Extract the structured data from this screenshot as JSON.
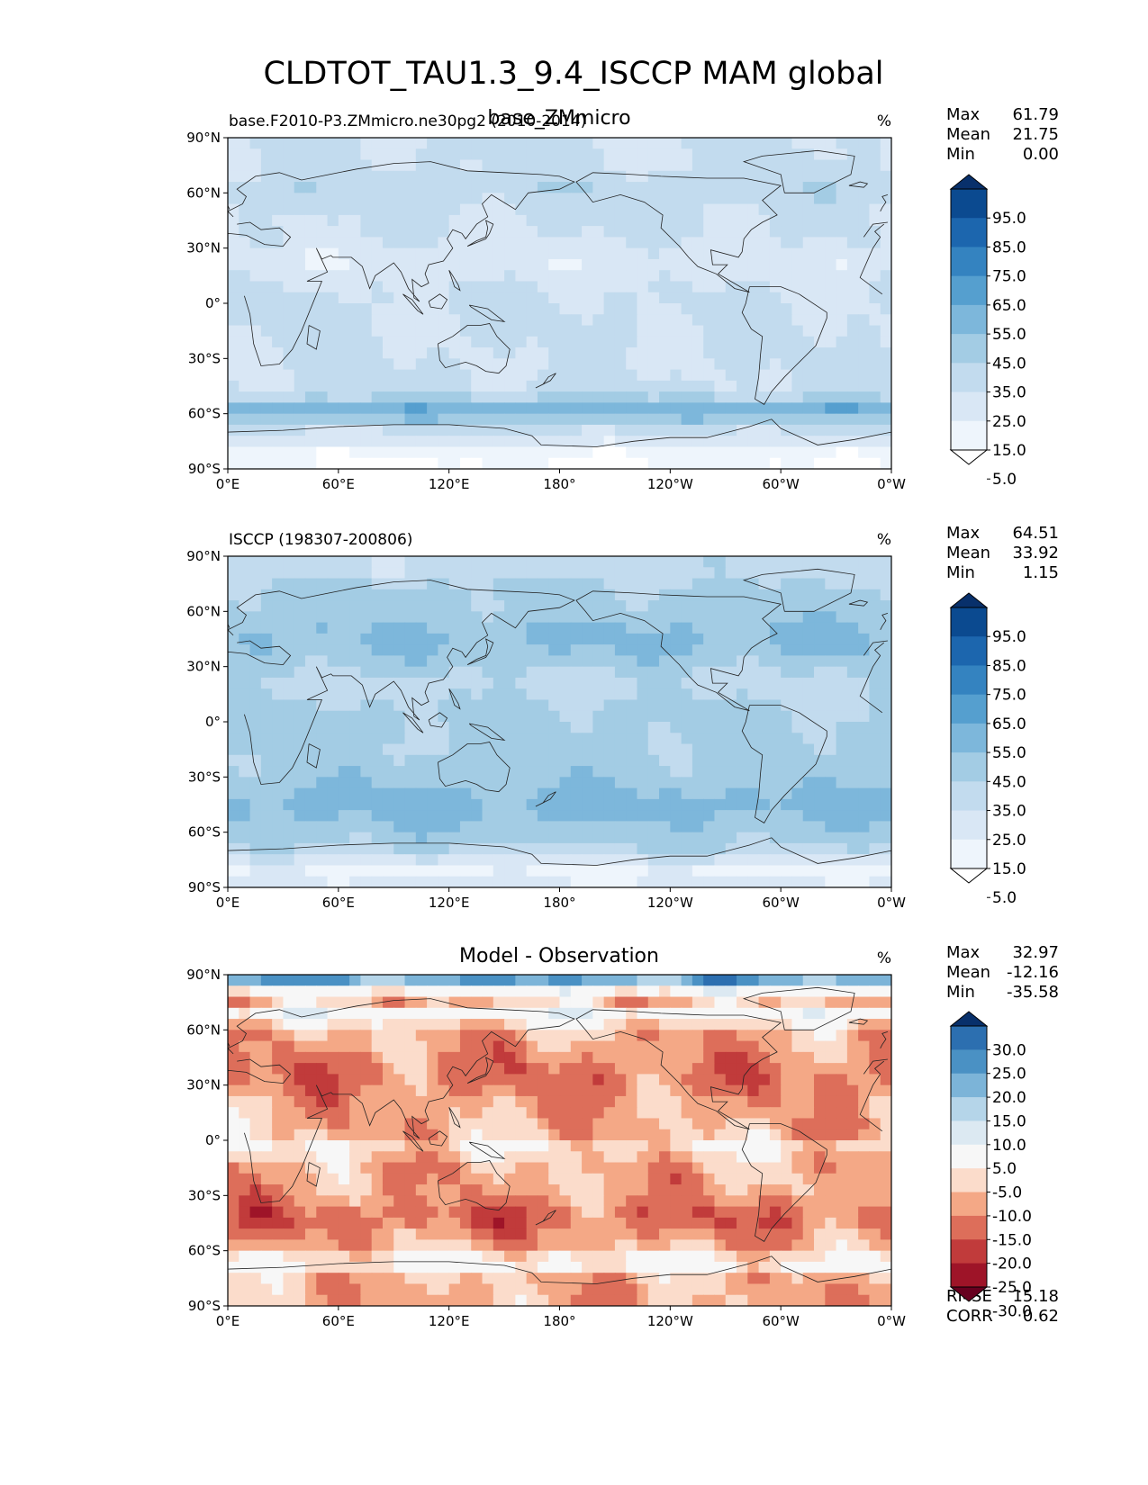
{
  "figure": {
    "title": "CLDTOT_TAU1.3_9.4_ISCCP MAM global"
  },
  "chart_data": [
    {
      "type": "heatmap",
      "panel": "test",
      "left_title": "base.F2010-P3.ZMmicro.ne30pg2 (2010-2014)",
      "center_title": "base_ZMmicro",
      "units": "%",
      "x_ticks": [
        "0°E",
        "60°E",
        "120°E",
        "180°",
        "120°W",
        "60°W",
        "0°W"
      ],
      "y_ticks": [
        "90°N",
        "60°N",
        "30°N",
        "0°",
        "30°S",
        "60°S",
        "90°S"
      ],
      "xlim": [
        0,
        360
      ],
      "ylim": [
        -90,
        90
      ],
      "stats": [
        {
          "label": "Max",
          "value": "61.79"
        },
        {
          "label": "Mean",
          "value": "21.75"
        },
        {
          "label": "Min",
          "value": "0.00"
        }
      ],
      "colorbar": {
        "labels": [
          "95.0",
          "85.0",
          "75.0",
          "65.0",
          "55.0",
          "45.0",
          "35.0",
          "25.0",
          "15.0",
          "5.0"
        ],
        "colors": [
          "#08306b",
          "#0b4a90",
          "#1c66ae",
          "#3483c0",
          "#559fcf",
          "#7db7db",
          "#a3cce4",
          "#c2dbee",
          "#d9e7f5",
          "#eef5fc",
          "#ffffff"
        ],
        "extend": "both"
      },
      "field": {
        "base": 26,
        "amplitude": 0.85
      }
    },
    {
      "type": "heatmap",
      "panel": "reference",
      "left_title": "ISCCP (198307-200806)",
      "center_title": "",
      "units": "%",
      "x_ticks": [
        "0°E",
        "60°E",
        "120°E",
        "180°",
        "120°W",
        "60°W",
        "0°W"
      ],
      "y_ticks": [
        "90°N",
        "60°N",
        "30°N",
        "0°",
        "30°S",
        "60°S",
        "90°S"
      ],
      "xlim": [
        0,
        360
      ],
      "ylim": [
        -90,
        90
      ],
      "stats": [
        {
          "label": "Max",
          "value": "64.51"
        },
        {
          "label": "Mean",
          "value": "33.92"
        },
        {
          "label": "Min",
          "value": "1.15"
        }
      ],
      "colorbar": {
        "labels": [
          "95.0",
          "85.0",
          "75.0",
          "65.0",
          "55.0",
          "45.0",
          "35.0",
          "25.0",
          "15.0",
          "5.0"
        ],
        "colors": [
          "#08306b",
          "#0b4a90",
          "#1c66ae",
          "#3483c0",
          "#559fcf",
          "#7db7db",
          "#a3cce4",
          "#c2dbee",
          "#d9e7f5",
          "#eef5fc",
          "#ffffff"
        ],
        "extend": "both"
      },
      "field": {
        "base": 38,
        "amplitude": 0.95
      }
    },
    {
      "type": "heatmap",
      "panel": "difference",
      "left_title": "",
      "center_title": "Model - Observation",
      "units": "%",
      "x_ticks": [
        "0°E",
        "60°E",
        "120°E",
        "180°",
        "120°W",
        "60°W",
        "0°W"
      ],
      "y_ticks": [
        "90°N",
        "60°N",
        "30°N",
        "0°",
        "30°S",
        "60°S",
        "90°S"
      ],
      "xlim": [
        0,
        360
      ],
      "ylim": [
        -90,
        90
      ],
      "stats": [
        {
          "label": "Max",
          "value": "32.97"
        },
        {
          "label": "Mean",
          "value": "-12.16"
        },
        {
          "label": "Min",
          "value": "-35.58"
        }
      ],
      "extra_stats": [
        {
          "label": "RMSE",
          "value": "15.18"
        },
        {
          "label": "CORR",
          "value": "0.62"
        }
      ],
      "colorbar": {
        "labels": [
          "30.0",
          "25.0",
          "20.0",
          "15.0",
          "10.0",
          "5.0",
          "-5.0",
          "-10.0",
          "-15.0",
          "-20.0",
          "-25.0",
          "-30.0"
        ],
        "colors": [
          "#08306b",
          "#2c6fb0",
          "#4a91c4",
          "#7cb4d8",
          "#b5d5e9",
          "#dce9f2",
          "#f7f7f7",
          "#fbdccb",
          "#f4a886",
          "#dd6e5a",
          "#c13b3b",
          "#9e1428",
          "#67001f"
        ],
        "extend": "both"
      },
      "field": {
        "base": -12,
        "amplitude": 1.0
      }
    }
  ]
}
